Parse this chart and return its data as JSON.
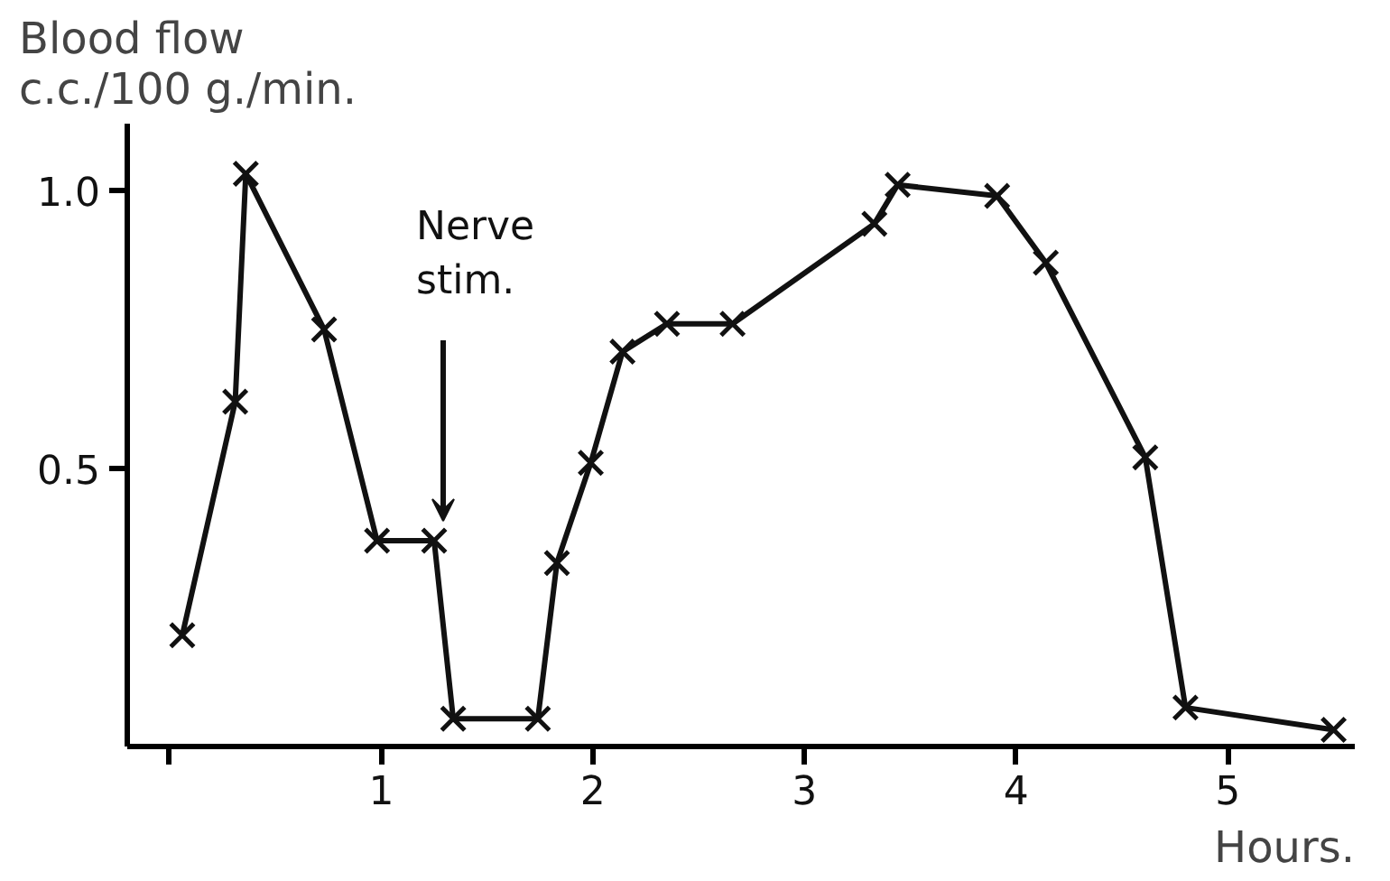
{
  "chart_data": {
    "type": "line",
    "ylabel": "Blood flow\nc.c./100 g./min.",
    "xlabel": "Hours.",
    "marker": "cross",
    "line_style": "solid",
    "grid": false,
    "x": [
      0.06,
      0.31,
      0.36,
      0.73,
      0.98,
      1.25,
      1.34,
      1.74,
      1.83,
      1.99,
      2.14,
      2.35,
      2.66,
      3.33,
      3.44,
      3.91,
      4.14,
      4.61,
      4.8,
      5.5
    ],
    "series": [
      {
        "color": "#111111",
        "values": [
          0.2,
          0.62,
          1.03,
          0.75,
          0.37,
          0.37,
          0.05,
          0.05,
          0.33,
          0.51,
          0.71,
          0.76,
          0.76,
          0.94,
          1.01,
          0.99,
          0.87,
          0.52,
          0.07,
          0.03
        ]
      }
    ],
    "xlim": [
      -0.2,
      5.6
    ],
    "ylim": [
      0,
      1.12
    ],
    "xticks": [
      {
        "value": 0,
        "label": null
      },
      1,
      2,
      3,
      4,
      5
    ],
    "yticks": [
      {
        "value": 0.5,
        "label": "0.5"
      },
      {
        "value": 1,
        "label": "1.0"
      }
    ],
    "annotations": [
      "Nerve stim."
    ]
  }
}
